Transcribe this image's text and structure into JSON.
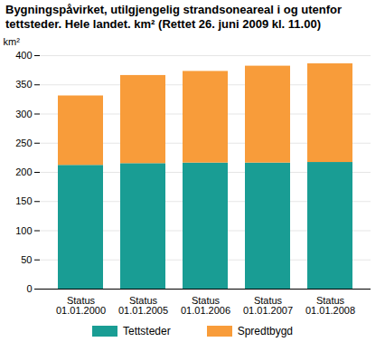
{
  "chart_data": {
    "type": "bar",
    "stacked": true,
    "title": "Bygningspåvirket, utilgjengelig strandsoneareal i og utenfor tettsteder. Hele landet. km² (Rettet 26. juni 2009 kl. 11.00)",
    "y_label": "km²",
    "categories": [
      "Status\n01.01.2000",
      "Status\n01.01.2005",
      "Status\n01.01.2006",
      "Status\n01.01.2007",
      "Status\n01.01.2008"
    ],
    "series": [
      {
        "name": "Tettsteder",
        "color": "#199d94",
        "values": [
          212,
          215,
          216,
          216,
          217
        ]
      },
      {
        "name": "Spredtbygd",
        "color": "#f89c3a",
        "values": [
          119,
          151,
          157,
          166,
          169
        ]
      }
    ],
    "ylim": [
      0,
      400
    ],
    "yticks": [
      0,
      50,
      100,
      150,
      200,
      250,
      300,
      350,
      400
    ],
    "grid": true,
    "legend": "bottom"
  }
}
